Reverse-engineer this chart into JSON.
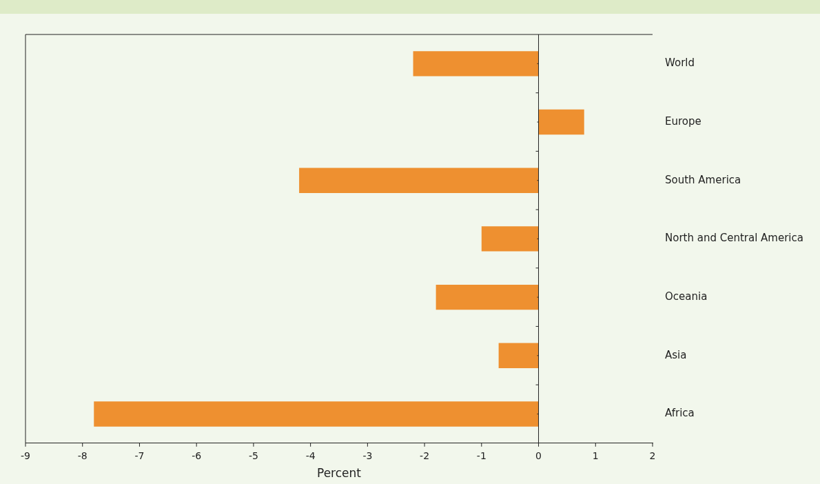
{
  "chart_data": {
    "type": "bar",
    "orientation": "horizontal",
    "categories": [
      "World",
      "Europe",
      "South America",
      "North and Central America",
      "Oceania",
      "Asia",
      "Africa"
    ],
    "values": [
      -2.2,
      0.8,
      -4.2,
      -1.0,
      -1.8,
      -0.7,
      -7.8
    ],
    "color": "#ee9030",
    "xlim": [
      -9,
      2
    ],
    "xticks": [
      -9,
      -8,
      -7,
      -6,
      -5,
      -4,
      -3,
      -2,
      -1,
      0,
      1,
      2
    ],
    "xlabel": "Percent",
    "grid": false,
    "legend": false,
    "ref_lines": [
      {
        "axis": "x",
        "value": 0,
        "color": "#222222"
      }
    ]
  }
}
